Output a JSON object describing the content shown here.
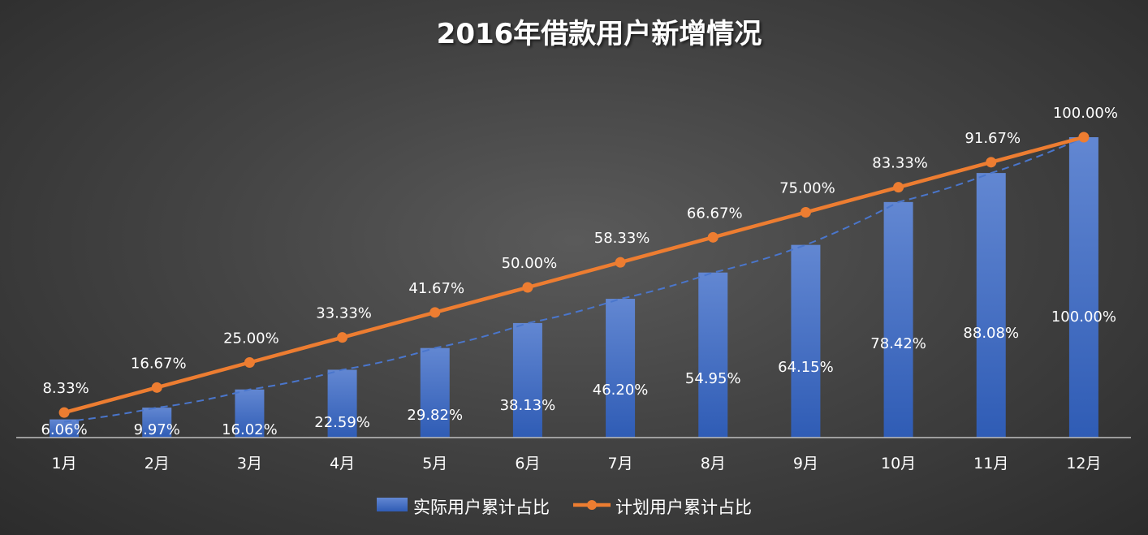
{
  "chart_data": {
    "type": "bar",
    "title": "2016年借款用户新增情况",
    "categories": [
      "1月",
      "2月",
      "3月",
      "4月",
      "5月",
      "6月",
      "7月",
      "8月",
      "9月",
      "10月",
      "11月",
      "12月"
    ],
    "series": [
      {
        "name": "实际用户累计占比",
        "type": "bar",
        "values": [
          6.06,
          9.97,
          16.02,
          22.59,
          29.82,
          38.13,
          46.2,
          54.95,
          64.15,
          78.42,
          88.08,
          100.0
        ],
        "labels": [
          "6.06%",
          "9.97%",
          "16.02%",
          "22.59%",
          "29.82%",
          "38.13%",
          "46.20%",
          "54.95%",
          "64.15%",
          "78.42%",
          "88.08%",
          "100.00%"
        ],
        "color": "#4472c4",
        "trendline": "dashed"
      },
      {
        "name": "计划用户累计占比",
        "type": "line",
        "values": [
          8.33,
          16.67,
          25.0,
          33.33,
          41.67,
          50.0,
          58.33,
          66.67,
          75.0,
          83.33,
          91.67,
          100.0
        ],
        "labels": [
          "8.33%",
          "16.67%",
          "25.00%",
          "33.33%",
          "41.67%",
          "50.00%",
          "58.33%",
          "66.67%",
          "75.00%",
          "83.33%",
          "91.67%",
          "100.00%"
        ],
        "color": "#ed7d31"
      }
    ],
    "ylim": [
      0,
      100
    ],
    "grid": false,
    "legend": "bottom"
  }
}
